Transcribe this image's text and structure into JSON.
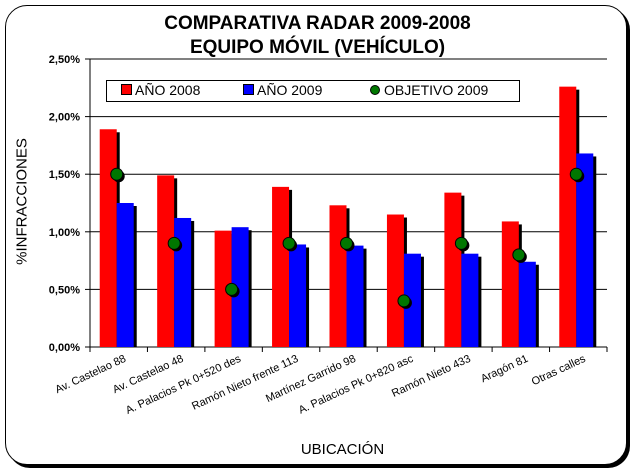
{
  "chart_data": {
    "type": "bar",
    "title": "COMPARATIVA RADAR 2009-2008",
    "subtitle": "EQUIPO MÓVIL (VEHÍCULO)",
    "xlabel": "UBICACIÓN",
    "ylabel": "%INFRACCIONES",
    "ylim": [
      0,
      2.5
    ],
    "yticks": [
      "0,00%",
      "0,50%",
      "1,00%",
      "1,50%",
      "2,00%",
      "2,50%"
    ],
    "ytick_values": [
      0,
      0.5,
      1.0,
      1.5,
      2.0,
      2.5
    ],
    "grid": true,
    "legend_position": "top",
    "categories": [
      "Av. Castelao 88",
      "Av. Castelao 48",
      "A. Palacios Pk 0+520 des",
      "Ramón Nieto frente 113",
      "Martínez Garrido 98",
      "A. Palacios Pk 0+820 asc",
      "Ramón Nieto 433",
      "Aragón 81",
      "Otras calles"
    ],
    "series": [
      {
        "name": "AÑO 2008",
        "kind": "bar",
        "color": "#ff0000",
        "values": [
          1.89,
          1.49,
          1.01,
          1.39,
          1.23,
          1.15,
          1.34,
          1.09,
          2.26
        ]
      },
      {
        "name": "AÑO 2009",
        "kind": "bar",
        "color": "#0000ff",
        "values": [
          1.25,
          1.12,
          1.04,
          0.89,
          0.88,
          0.81,
          0.81,
          0.74,
          1.68
        ]
      },
      {
        "name": "OBJETIVO 2009",
        "kind": "marker",
        "color": "#007700",
        "values": [
          1.5,
          0.9,
          0.5,
          0.9,
          0.9,
          0.4,
          0.9,
          0.8,
          1.5
        ]
      }
    ]
  }
}
